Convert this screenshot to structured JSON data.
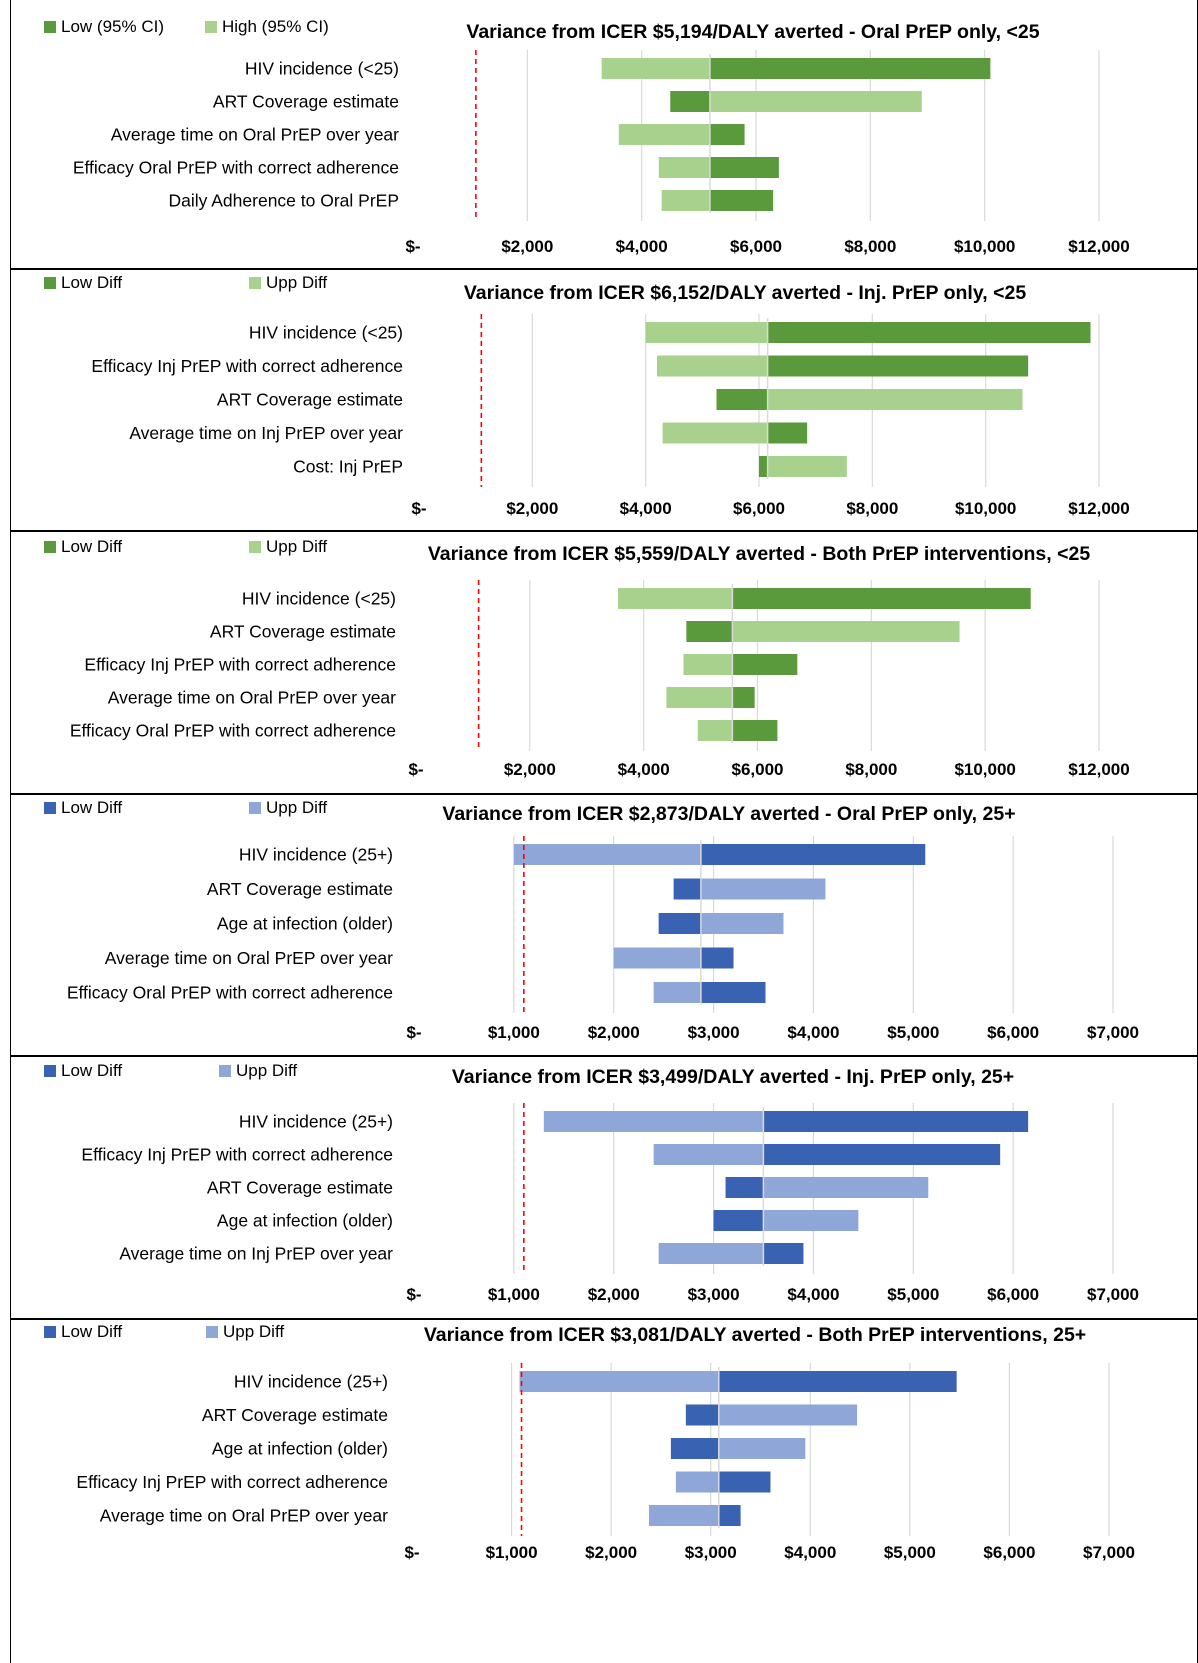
{
  "chart_data": [
    {
      "type": "bar",
      "orientation": "horizontal",
      "title": "Variance from ICER $5,194/DALY averted - Oral PrEP only, <25",
      "base": 5194,
      "reference_line": 1100,
      "legend": [
        {
          "name": "Low (95% CI)",
          "color": "#5b9a3c"
        },
        {
          "name": "High (95% CI)",
          "color": "#a9d18e"
        }
      ],
      "legend_position": "top-left",
      "categories": [
        "HIV incidence (<25)",
        "ART Coverage estimate",
        "Average time on Oral PrEP over year",
        "Efficacy Oral PrEP with correct adherence",
        "Daily Adherence to Oral PrEP"
      ],
      "series": [
        {
          "name": "Low (95% CI)",
          "values": [
            10100,
            4500,
            5800,
            6400,
            6300
          ]
        },
        {
          "name": "High (95% CI)",
          "values": [
            3300,
            8900,
            3600,
            4300,
            4350
          ]
        }
      ],
      "xlim": [
        0,
        12000
      ],
      "xticks": [
        0,
        2000,
        4000,
        6000,
        8000,
        10000,
        12000
      ],
      "xtick_labels": [
        "$-",
        "$2,000",
        "$4,000",
        "$6,000",
        "$8,000",
        "$10,000",
        "$12,000"
      ],
      "grid": true
    },
    {
      "type": "bar",
      "orientation": "horizontal",
      "title": "Variance from ICER $6,152/DALY  averted - Inj. PrEP only, <25",
      "base": 6152,
      "reference_line": 1100,
      "legend": [
        {
          "name": "Low Diff",
          "color": "#5b9a3c"
        },
        {
          "name": "Upp Diff",
          "color": "#a9d18e"
        }
      ],
      "legend_position": "top-left",
      "categories": [
        "HIV incidence (<25)",
        "Efficacy Inj PrEP with correct adherence",
        "ART Coverage estimate",
        "Average time on Inj PrEP over year",
        "Cost: Inj PrEP"
      ],
      "series": [
        {
          "name": "Low Diff",
          "values": [
            11850,
            10750,
            5250,
            6850,
            6000
          ]
        },
        {
          "name": "Upp Diff",
          "values": [
            4000,
            4200,
            10650,
            4300,
            7550
          ]
        }
      ],
      "xlim": [
        0,
        12000
      ],
      "xticks": [
        0,
        2000,
        4000,
        6000,
        8000,
        10000,
        12000
      ],
      "xtick_labels": [
        "$-",
        "$2,000",
        "$4,000",
        "$6,000",
        "$8,000",
        "$10,000",
        "$12,000"
      ],
      "grid": true
    },
    {
      "type": "bar",
      "orientation": "horizontal",
      "title": "Variance from ICER $5,559/DALY  averted - Both PrEP interventions, <25",
      "base": 5559,
      "reference_line": 1100,
      "legend": [
        {
          "name": "Low Diff",
          "color": "#5b9a3c"
        },
        {
          "name": "Upp Diff",
          "color": "#a9d18e"
        }
      ],
      "legend_position": "top-left",
      "categories": [
        "HIV incidence (<25)",
        "ART Coverage estimate",
        "Efficacy Inj PrEP with correct adherence",
        "Average time on Oral PrEP over year",
        "Efficacy Oral PrEP with correct adherence"
      ],
      "series": [
        {
          "name": "Low Diff",
          "values": [
            10800,
            4750,
            6700,
            5950,
            6350
          ]
        },
        {
          "name": "Upp Diff",
          "values": [
            3550,
            9550,
            4700,
            4400,
            4950
          ]
        }
      ],
      "xlim": [
        0,
        12000
      ],
      "xticks": [
        0,
        2000,
        4000,
        6000,
        8000,
        10000,
        12000
      ],
      "xtick_labels": [
        "$-",
        "$2,000",
        "$4,000",
        "$6,000",
        "$8,000",
        "$10,000",
        "$12,000"
      ],
      "grid": true
    },
    {
      "type": "bar",
      "orientation": "horizontal",
      "title": "Variance from ICER $2,873/DALY averted - Oral PrEP only, 25+",
      "base": 2873,
      "reference_line": 1100,
      "legend": [
        {
          "name": "Low Diff",
          "color": "#3a62b3"
        },
        {
          "name": "Upp Diff",
          "color": "#8fa6d8"
        }
      ],
      "legend_position": "top-left",
      "categories": [
        "HIV incidence (25+)",
        "ART Coverage estimate",
        "Age at infection (older)",
        "Average time on Oral PrEP over year",
        "Efficacy Oral PrEP with correct adherence"
      ],
      "series": [
        {
          "name": "Low Diff",
          "values": [
            5120,
            2600,
            2450,
            3200,
            3520
          ]
        },
        {
          "name": "Upp Diff",
          "values": [
            1000,
            4120,
            3700,
            2000,
            2400
          ]
        }
      ],
      "xlim": [
        0,
        7000
      ],
      "xticks": [
        0,
        1000,
        2000,
        3000,
        4000,
        5000,
        6000,
        7000
      ],
      "xtick_labels": [
        "$-",
        "$1,000",
        "$2,000",
        "$3,000",
        "$4,000",
        "$5,000",
        "$6,000",
        "$7,000"
      ],
      "grid": true
    },
    {
      "type": "bar",
      "orientation": "horizontal",
      "title": "Variance from ICER $3,499/DALY averted - Inj. PrEP only, 25+",
      "base": 3499,
      "reference_line": 1100,
      "legend": [
        {
          "name": "Low Diff",
          "color": "#3a62b3"
        },
        {
          "name": "Upp Diff",
          "color": "#8fa6d8"
        }
      ],
      "legend_position": "top-left",
      "categories": [
        "HIV incidence (25+)",
        "Efficacy Inj PrEP with correct adherence",
        "ART Coverage estimate",
        "Age at infection (older)",
        "Average time on Inj PrEP over year"
      ],
      "series": [
        {
          "name": "Low Diff",
          "values": [
            6150,
            5870,
            3120,
            3000,
            3900
          ]
        },
        {
          "name": "Upp Diff",
          "values": [
            1300,
            2400,
            5150,
            4450,
            2450
          ]
        }
      ],
      "xlim": [
        0,
        7000
      ],
      "xticks": [
        0,
        1000,
        2000,
        3000,
        4000,
        5000,
        6000,
        7000
      ],
      "xtick_labels": [
        "$-",
        "$1,000",
        "$2,000",
        "$3,000",
        "$4,000",
        "$5,000",
        "$6,000",
        "$7,000"
      ],
      "grid": true
    },
    {
      "type": "bar",
      "orientation": "horizontal",
      "title": "Variance from ICER $3,081/DALY averted - Both PrEP interventions, 25+",
      "base": 3081,
      "reference_line": 1100,
      "legend": [
        {
          "name": "Low Diff",
          "color": "#3a62b3"
        },
        {
          "name": "Upp Diff",
          "color": "#8fa6d8"
        }
      ],
      "legend_position": "top-left",
      "categories": [
        "HIV incidence (25+)",
        "ART Coverage estimate",
        "Age at infection (older)",
        "Efficacy Inj PrEP with correct adherence",
        "Average time on Oral PrEP over year"
      ],
      "series": [
        {
          "name": "Low Diff",
          "values": [
            5470,
            2750,
            2600,
            3600,
            3300
          ]
        },
        {
          "name": "Upp Diff",
          "values": [
            1080,
            4470,
            3950,
            2650,
            2380
          ]
        }
      ],
      "xlim": [
        0,
        7000
      ],
      "xticks": [
        0,
        1000,
        2000,
        3000,
        4000,
        5000,
        6000,
        7000
      ],
      "xtick_labels": [
        "$-",
        "$1,000",
        "$2,000",
        "$3,000",
        "$4,000",
        "$5,000",
        "$6,000",
        "$7,000"
      ],
      "grid": true
    }
  ]
}
